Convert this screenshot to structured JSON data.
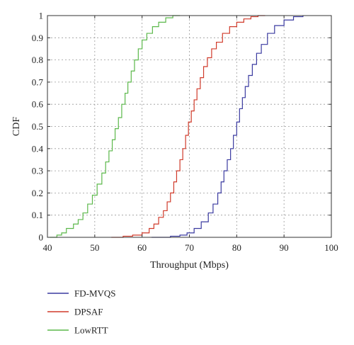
{
  "chart_data": {
    "type": "line",
    "title": "",
    "xlabel": "Throughput (Mbps)",
    "ylabel": "CDF",
    "xlim": [
      40,
      100
    ],
    "ylim": [
      0,
      1
    ],
    "x_ticks": [
      40,
      50,
      60,
      70,
      80,
      90,
      100
    ],
    "y_ticks": [
      0,
      0.1,
      0.2,
      0.3,
      0.4,
      0.5,
      0.6,
      0.7,
      0.8,
      0.9,
      1
    ],
    "x_tick_labels": [
      "40",
      "50",
      "60",
      "70",
      "80",
      "90",
      "100"
    ],
    "y_tick_labels": [
      "0",
      "0.1",
      "0.2",
      "0.3",
      "0.4",
      "0.5",
      "0.6",
      "0.7",
      "0.8",
      "0.9",
      "1"
    ],
    "grid": true,
    "legend_placement": "bottom-left outside",
    "series": [
      {
        "name": "FD-MVQS",
        "color": "#3a3aa0",
        "x": [
          62,
          66,
          68,
          69.5,
          71,
          72.5,
          74,
          75,
          76,
          76.7,
          77.3,
          78,
          78.7,
          79.3,
          80,
          80.6,
          81.2,
          81.8,
          82.5,
          83.3,
          84.2,
          85.2,
          86.5,
          88,
          90,
          92,
          94
        ],
        "y": [
          0,
          0.005,
          0.01,
          0.02,
          0.04,
          0.07,
          0.11,
          0.15,
          0.2,
          0.25,
          0.3,
          0.35,
          0.4,
          0.46,
          0.52,
          0.58,
          0.63,
          0.68,
          0.73,
          0.78,
          0.83,
          0.87,
          0.92,
          0.955,
          0.98,
          0.995,
          1
        ]
      },
      {
        "name": "DPSAF",
        "color": "#d03a2a",
        "x": [
          53.5,
          56,
          58,
          60,
          61.5,
          62.5,
          63.5,
          64.5,
          65.3,
          66,
          66.7,
          67.3,
          68,
          68.6,
          69.2,
          69.8,
          70.4,
          71,
          71.6,
          72.3,
          73,
          73.8,
          74.7,
          75.7,
          77,
          78.5,
          80,
          81.5,
          83,
          84.5,
          86
        ],
        "y": [
          0,
          0.005,
          0.01,
          0.02,
          0.04,
          0.06,
          0.09,
          0.12,
          0.16,
          0.2,
          0.25,
          0.3,
          0.35,
          0.4,
          0.46,
          0.52,
          0.57,
          0.62,
          0.67,
          0.72,
          0.77,
          0.81,
          0.85,
          0.88,
          0.92,
          0.95,
          0.97,
          0.985,
          0.995,
          1,
          1
        ]
      },
      {
        "name": "LowRTT",
        "color": "#5bb84a",
        "x": [
          40.5,
          42,
          43,
          44,
          45.5,
          46.5,
          47.5,
          48.5,
          49.5,
          50.5,
          51.5,
          52.3,
          53,
          53.7,
          54.3,
          55,
          55.7,
          56.4,
          57,
          57.7,
          58.4,
          59.2,
          60,
          61,
          62.2,
          63.5,
          65,
          66.5,
          68
        ],
        "y": [
          0,
          0.01,
          0.02,
          0.04,
          0.06,
          0.08,
          0.11,
          0.15,
          0.19,
          0.24,
          0.29,
          0.34,
          0.39,
          0.44,
          0.49,
          0.54,
          0.6,
          0.65,
          0.7,
          0.75,
          0.8,
          0.85,
          0.89,
          0.92,
          0.95,
          0.97,
          0.99,
          1,
          1
        ]
      }
    ]
  }
}
